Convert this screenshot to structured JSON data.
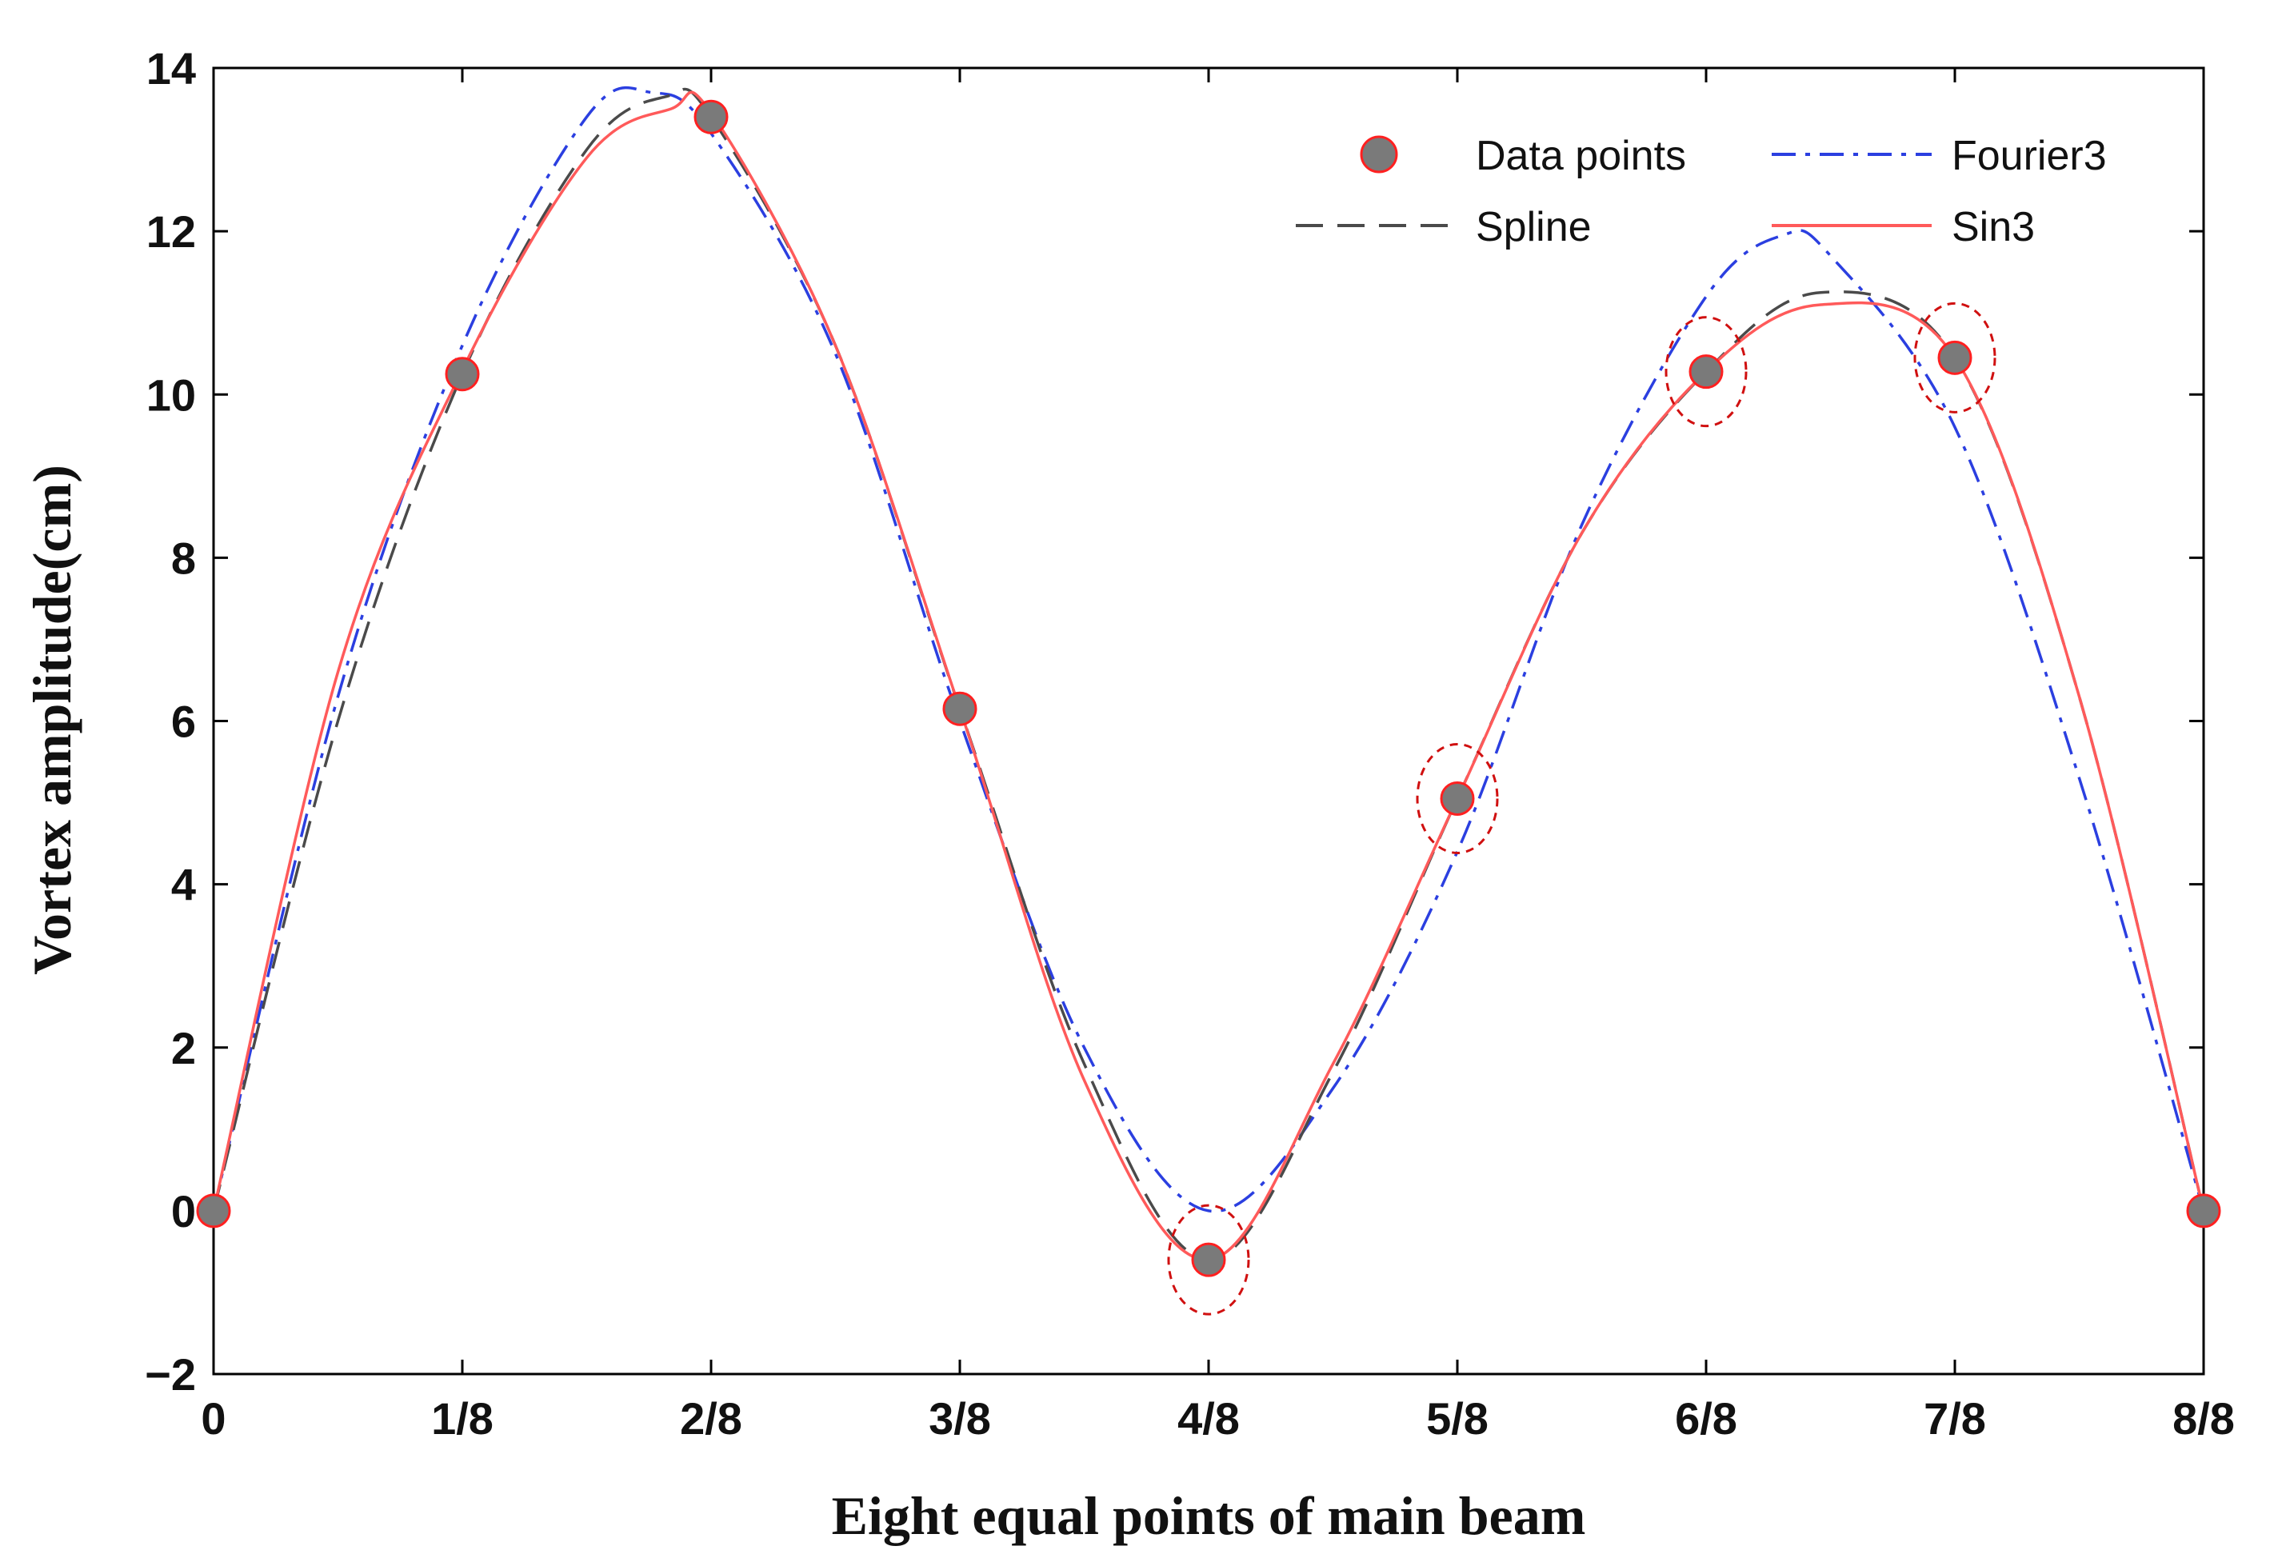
{
  "chart_data": {
    "type": "line",
    "title": "",
    "xlabel": "Eight equal points of main beam",
    "ylabel": "Vortex amplitude(cm)",
    "x_categories": [
      "0",
      "1/8",
      "2/8",
      "3/8",
      "4/8",
      "5/8",
      "6/8",
      "7/8",
      "8/8"
    ],
    "x": [
      0,
      0.125,
      0.25,
      0.375,
      0.5,
      0.625,
      0.75,
      0.875,
      1.0
    ],
    "xlim": [
      0,
      1
    ],
    "ylim": [
      -2,
      14
    ],
    "yticks": [
      -2,
      0,
      2,
      4,
      6,
      8,
      10,
      12,
      14
    ],
    "ytick_labels": [
      "−2",
      "0",
      "2",
      "4",
      "6",
      "8",
      "10",
      "12",
      "14"
    ],
    "grid": false,
    "legend_position": "top-right",
    "series": [
      {
        "name": "Data points",
        "style": "markers",
        "color": "#7a7a7a",
        "edge_color": "#ff2020",
        "x": [
          0,
          0.125,
          0.25,
          0.375,
          0.5,
          0.625,
          0.75,
          0.875,
          1.0
        ],
        "values": [
          0,
          10.25,
          13.4,
          6.15,
          -0.6,
          5.05,
          10.28,
          10.45,
          0
        ]
      },
      {
        "name": "Fourier3",
        "style": "dash-dot",
        "color": "#2b3fe0",
        "x": [
          0,
          0.0625,
          0.125,
          0.1875,
          0.22,
          0.25,
          0.3125,
          0.375,
          0.4375,
          0.5,
          0.5625,
          0.625,
          0.6875,
          0.75,
          0.7885,
          0.8125,
          0.875,
          0.9375,
          1.0
        ],
        "values": [
          0,
          6.3,
          10.6,
          13.4,
          13.7,
          13.2,
          10.5,
          6.0,
          2.0,
          0.0,
          1.5,
          4.4,
          8.4,
          11.2,
          11.95,
          11.7,
          9.6,
          5.3,
          0
        ]
      },
      {
        "name": "Spline",
        "style": "dashed",
        "color": "#4a4a4a",
        "x": [
          0,
          0.0625,
          0.125,
          0.1875,
          0.2275,
          0.25,
          0.3125,
          0.375,
          0.4375,
          0.5,
          0.5625,
          0.625,
          0.6875,
          0.75,
          0.8076,
          0.875,
          0.9375,
          1.0
        ],
        "values": [
          0,
          6.0,
          10.25,
          13.0,
          13.65,
          13.4,
          10.6,
          6.15,
          1.8,
          -0.6,
          1.7,
          5.05,
          8.3,
          10.28,
          11.25,
          10.45,
          6.3,
          0
        ]
      },
      {
        "name": "Sin3",
        "style": "solid",
        "color": "#ff5a5a",
        "x": [
          0,
          0.0625,
          0.125,
          0.1875,
          0.23,
          0.25,
          0.3125,
          0.375,
          0.4375,
          0.5,
          0.5625,
          0.625,
          0.6875,
          0.75,
          0.8076,
          0.875,
          0.9375,
          1.0
        ],
        "values": [
          0,
          6.6,
          10.3,
          12.9,
          13.5,
          13.45,
          10.6,
          6.15,
          1.6,
          -0.6,
          1.8,
          5.05,
          8.3,
          10.28,
          11.1,
          10.45,
          6.3,
          0
        ]
      }
    ],
    "annotations": {
      "type": "dashed-ellipse",
      "color": "#d01010",
      "highlighted_x": [
        0.5,
        0.625,
        0.75,
        0.875
      ],
      "highlighted_y": [
        -0.6,
        5.05,
        10.28,
        10.45
      ]
    }
  }
}
